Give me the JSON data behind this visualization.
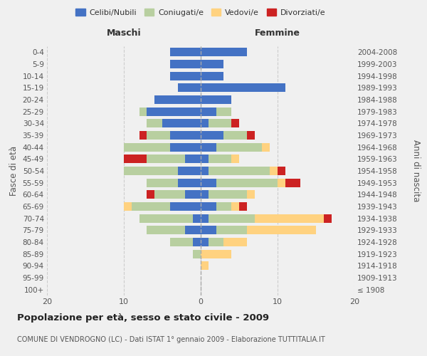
{
  "age_groups": [
    "100+",
    "95-99",
    "90-94",
    "85-89",
    "80-84",
    "75-79",
    "70-74",
    "65-69",
    "60-64",
    "55-59",
    "50-54",
    "45-49",
    "40-44",
    "35-39",
    "30-34",
    "25-29",
    "20-24",
    "15-19",
    "10-14",
    "5-9",
    "0-4"
  ],
  "birth_years": [
    "≤ 1908",
    "1909-1913",
    "1914-1918",
    "1919-1923",
    "1924-1928",
    "1929-1933",
    "1934-1938",
    "1939-1943",
    "1944-1948",
    "1949-1953",
    "1954-1958",
    "1959-1963",
    "1964-1968",
    "1969-1973",
    "1974-1978",
    "1979-1983",
    "1984-1988",
    "1989-1993",
    "1994-1998",
    "1999-2003",
    "2004-2008"
  ],
  "male_celibi": [
    0,
    0,
    0,
    0,
    1,
    2,
    1,
    4,
    2,
    3,
    3,
    2,
    4,
    4,
    5,
    7,
    6,
    3,
    4,
    4,
    4
  ],
  "male_coniugati": [
    0,
    0,
    0,
    1,
    3,
    5,
    7,
    5,
    4,
    4,
    7,
    5,
    6,
    3,
    2,
    1,
    0,
    0,
    0,
    0,
    0
  ],
  "male_vedovi": [
    0,
    0,
    0,
    0,
    0,
    0,
    0,
    1,
    0,
    0,
    0,
    0,
    0,
    0,
    0,
    0,
    0,
    0,
    0,
    0,
    0
  ],
  "male_divorziati": [
    0,
    0,
    0,
    0,
    0,
    0,
    0,
    0,
    1,
    0,
    0,
    3,
    0,
    1,
    0,
    0,
    0,
    0,
    0,
    0,
    0
  ],
  "female_nubili": [
    0,
    0,
    0,
    0,
    1,
    2,
    1,
    2,
    1,
    2,
    1,
    1,
    2,
    3,
    1,
    2,
    4,
    11,
    3,
    3,
    6
  ],
  "female_coniugate": [
    0,
    0,
    0,
    0,
    2,
    4,
    6,
    2,
    5,
    8,
    8,
    3,
    6,
    3,
    3,
    2,
    0,
    0,
    0,
    0,
    0
  ],
  "female_vedove": [
    0,
    0,
    1,
    4,
    3,
    9,
    9,
    1,
    1,
    1,
    1,
    1,
    1,
    0,
    0,
    0,
    0,
    0,
    0,
    0,
    0
  ],
  "female_divorziate": [
    0,
    0,
    0,
    0,
    0,
    0,
    1,
    1,
    0,
    2,
    1,
    0,
    0,
    1,
    1,
    0,
    0,
    0,
    0,
    0,
    0
  ],
  "col_celibi": "#4472c4",
  "col_coniugati": "#b8cfa0",
  "col_vedovi": "#ffd280",
  "col_divorziati": "#cc2222",
  "xlim": [
    -20,
    20
  ],
  "xticks": [
    -20,
    -10,
    0,
    10,
    20
  ],
  "xticklabels": [
    "20",
    "10",
    "0",
    "10",
    "20"
  ],
  "title1": "Popolazione per età, sesso e stato civile - 2009",
  "title2": "COMUNE DI VENDROGNO (LC) - Dati ISTAT 1° gennaio 2009 - Elaborazione TUTTITALIA.IT",
  "ylabel_left": "Fasce di età",
  "ylabel_right": "Anni di nascita",
  "legend_labels": [
    "Celibi/Nubili",
    "Coniugati/e",
    "Vedovi/e",
    "Divorziati/e"
  ],
  "header_maschi": "Maschi",
  "header_femmine": "Femmine",
  "bg_color": "#f0f0f0",
  "grid_color": "#cccccc"
}
